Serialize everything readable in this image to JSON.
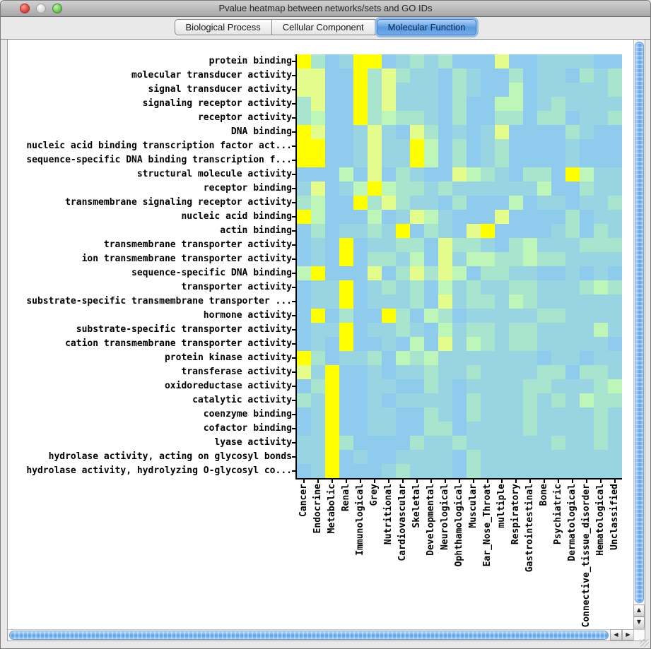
{
  "window": {
    "title": "Pvalue heatmap between networks/sets and GO IDs",
    "traffic_lights": [
      "close",
      "minimize-disabled",
      "zoom"
    ]
  },
  "tabs": [
    {
      "label": "Biological Process",
      "selected": false
    },
    {
      "label": "Cellular Component",
      "selected": false
    },
    {
      "label": "Molecular Function",
      "selected": true
    }
  ],
  "icons": {
    "up": "▲",
    "down": "▼",
    "left": "◀",
    "right": "▶"
  },
  "chart_data": {
    "type": "heatmap",
    "title": "Pvalue heatmap between networks/sets and GO IDs (Molecular Function tab)",
    "value_encoding": "color level 0=light blue (least significant p-value) to 5=bright yellow (most significant p-value)",
    "palette": [
      "#8ECBED",
      "#98D4E2",
      "#A9E4CF",
      "#BEF6B9",
      "#E4FC8C",
      "#FFFF00"
    ],
    "rows": [
      "protein binding",
      "molecular transducer activity",
      "signal transducer activity",
      "signaling receptor activity",
      "receptor activity",
      "DNA binding",
      "nucleic acid binding transcription factor act...",
      "sequence-specific DNA binding transcription f...",
      "structural molecule activity",
      "receptor binding",
      "transmembrane signaling receptor activity",
      "nucleic acid binding",
      "actin binding",
      "transmembrane transporter activity",
      "ion transmembrane transporter activity",
      "sequence-specific DNA binding",
      "transporter activity",
      "substrate-specific transmembrane transporter ...",
      "hormone activity",
      "substrate-specific transporter activity",
      "cation transmembrane transporter activity",
      "protein kinase activity",
      "transferase activity",
      "oxidoreductase activity",
      "catalytic activity",
      "coenzyme binding",
      "cofactor binding",
      "lyase activity",
      "hydrolase activity, acting on glycosyl bonds",
      "hydrolase activity, hydrolyzing O-glycosyl co..."
    ],
    "columns": [
      "Cancer",
      "Endocrine",
      "Metabolic",
      "Renal",
      "Immunological",
      "Grey",
      "Nutritional",
      "Cardiovascular",
      "Skeletal",
      "Developmental",
      "Neurological",
      "Ophthamological",
      "Muscular",
      "Ear_Nose_Throat",
      "multiple",
      "Respiratory",
      "Gastrointestinal",
      "Bone",
      "Psychiatric",
      "Dermatological",
      "Connective_tissue_disorder",
      "Hematological",
      "Unclassified"
    ],
    "levels": [
      [
        5,
        2,
        0,
        1,
        5,
        5,
        0,
        1,
        2,
        1,
        2,
        0,
        0,
        0,
        4,
        0,
        0,
        1,
        1,
        1,
        1,
        0,
        0
      ],
      [
        4,
        4,
        0,
        0,
        5,
        2,
        4,
        2,
        1,
        1,
        0,
        2,
        1,
        0,
        0,
        2,
        0,
        1,
        1,
        0,
        2,
        1,
        2
      ],
      [
        4,
        4,
        0,
        0,
        5,
        2,
        4,
        1,
        1,
        1,
        0,
        2,
        1,
        0,
        0,
        3,
        0,
        1,
        1,
        1,
        1,
        1,
        2
      ],
      [
        2,
        4,
        0,
        0,
        5,
        2,
        4,
        1,
        1,
        1,
        0,
        2,
        0,
        0,
        3,
        3,
        0,
        1,
        2,
        1,
        1,
        1,
        1
      ],
      [
        2,
        3,
        0,
        0,
        5,
        2,
        3,
        2,
        2,
        1,
        0,
        2,
        0,
        0,
        2,
        2,
        0,
        2,
        2,
        0,
        1,
        1,
        2
      ],
      [
        5,
        4,
        0,
        0,
        1,
        4,
        1,
        0,
        4,
        2,
        0,
        1,
        0,
        1,
        4,
        0,
        0,
        0,
        0,
        2,
        1,
        0,
        0
      ],
      [
        5,
        5,
        0,
        0,
        1,
        4,
        1,
        1,
        5,
        3,
        0,
        2,
        0,
        1,
        2,
        0,
        0,
        0,
        0,
        1,
        0,
        0,
        0
      ],
      [
        5,
        5,
        0,
        0,
        1,
        4,
        1,
        1,
        5,
        3,
        0,
        2,
        0,
        1,
        2,
        0,
        0,
        0,
        0,
        1,
        0,
        0,
        0
      ],
      [
        0,
        0,
        0,
        3,
        0,
        4,
        0,
        2,
        1,
        0,
        0,
        4,
        3,
        2,
        1,
        0,
        2,
        2,
        0,
        5,
        3,
        1,
        1
      ],
      [
        1,
        4,
        0,
        1,
        3,
        5,
        3,
        2,
        2,
        1,
        2,
        1,
        1,
        1,
        1,
        1,
        1,
        3,
        0,
        0,
        2,
        1,
        1
      ],
      [
        2,
        3,
        0,
        0,
        5,
        2,
        4,
        2,
        1,
        1,
        0,
        2,
        0,
        0,
        0,
        3,
        0,
        1,
        1,
        0,
        1,
        1,
        2
      ],
      [
        5,
        3,
        0,
        0,
        0,
        3,
        0,
        1,
        4,
        3,
        1,
        0,
        0,
        0,
        4,
        0,
        0,
        0,
        0,
        2,
        0,
        1,
        1
      ],
      [
        0,
        2,
        0,
        1,
        1,
        2,
        1,
        5,
        0,
        2,
        1,
        0,
        4,
        5,
        0,
        0,
        0,
        0,
        1,
        2,
        0,
        2,
        1
      ],
      [
        0,
        1,
        0,
        5,
        0,
        1,
        1,
        2,
        2,
        0,
        4,
        2,
        2,
        1,
        0,
        2,
        3,
        1,
        1,
        1,
        2,
        2,
        2
      ],
      [
        0,
        1,
        0,
        5,
        0,
        2,
        2,
        1,
        3,
        0,
        4,
        1,
        3,
        3,
        2,
        2,
        3,
        2,
        2,
        1,
        1,
        1,
        1
      ],
      [
        3,
        5,
        0,
        0,
        0,
        4,
        0,
        2,
        4,
        2,
        4,
        3,
        0,
        2,
        2,
        1,
        1,
        0,
        0,
        1,
        0,
        1,
        0
      ],
      [
        0,
        1,
        1,
        5,
        0,
        1,
        2,
        1,
        2,
        0,
        3,
        1,
        2,
        1,
        1,
        2,
        2,
        1,
        1,
        1,
        2,
        3,
        2
      ],
      [
        0,
        1,
        1,
        5,
        0,
        1,
        1,
        1,
        2,
        0,
        4,
        1,
        2,
        2,
        1,
        3,
        2,
        1,
        1,
        1,
        1,
        1,
        1
      ],
      [
        0,
        5,
        0,
        2,
        0,
        0,
        5,
        2,
        0,
        3,
        2,
        0,
        1,
        1,
        1,
        1,
        1,
        2,
        2,
        1,
        1,
        1,
        1
      ],
      [
        0,
        1,
        1,
        5,
        0,
        1,
        1,
        2,
        1,
        0,
        3,
        1,
        2,
        2,
        1,
        2,
        2,
        1,
        1,
        1,
        1,
        3,
        1
      ],
      [
        0,
        1,
        0,
        5,
        0,
        0,
        1,
        0,
        3,
        0,
        4,
        1,
        3,
        2,
        1,
        2,
        2,
        1,
        1,
        1,
        1,
        1,
        0
      ],
      [
        5,
        2,
        0,
        1,
        1,
        2,
        0,
        3,
        2,
        3,
        1,
        1,
        1,
        1,
        1,
        1,
        1,
        0,
        1,
        1,
        0,
        1,
        1
      ],
      [
        4,
        1,
        5,
        0,
        0,
        1,
        0,
        1,
        1,
        2,
        1,
        1,
        2,
        1,
        1,
        1,
        1,
        2,
        2,
        0,
        2,
        2,
        1
      ],
      [
        0,
        2,
        5,
        0,
        0,
        1,
        1,
        0,
        0,
        2,
        1,
        0,
        1,
        1,
        1,
        1,
        2,
        2,
        1,
        1,
        1,
        2,
        3
      ],
      [
        2,
        1,
        5,
        0,
        0,
        1,
        0,
        1,
        1,
        1,
        1,
        0,
        2,
        1,
        1,
        1,
        2,
        1,
        2,
        1,
        3,
        2,
        2
      ],
      [
        0,
        1,
        5,
        0,
        0,
        1,
        1,
        0,
        0,
        2,
        1,
        0,
        2,
        1,
        1,
        1,
        2,
        1,
        1,
        1,
        1,
        2,
        1
      ],
      [
        0,
        1,
        5,
        0,
        0,
        1,
        1,
        0,
        0,
        2,
        2,
        0,
        1,
        1,
        1,
        1,
        2,
        1,
        1,
        1,
        1,
        2,
        1
      ],
      [
        1,
        1,
        5,
        2,
        0,
        0,
        0,
        0,
        2,
        1,
        1,
        2,
        1,
        1,
        1,
        1,
        1,
        1,
        2,
        1,
        1,
        2,
        1
      ],
      [
        1,
        1,
        5,
        0,
        1,
        0,
        0,
        1,
        1,
        1,
        1,
        0,
        2,
        1,
        1,
        1,
        1,
        1,
        1,
        1,
        1,
        1,
        1
      ],
      [
        0,
        1,
        5,
        0,
        0,
        0,
        1,
        2,
        1,
        1,
        1,
        0,
        2,
        1,
        1,
        1,
        1,
        1,
        1,
        1,
        1,
        1,
        1
      ]
    ]
  }
}
